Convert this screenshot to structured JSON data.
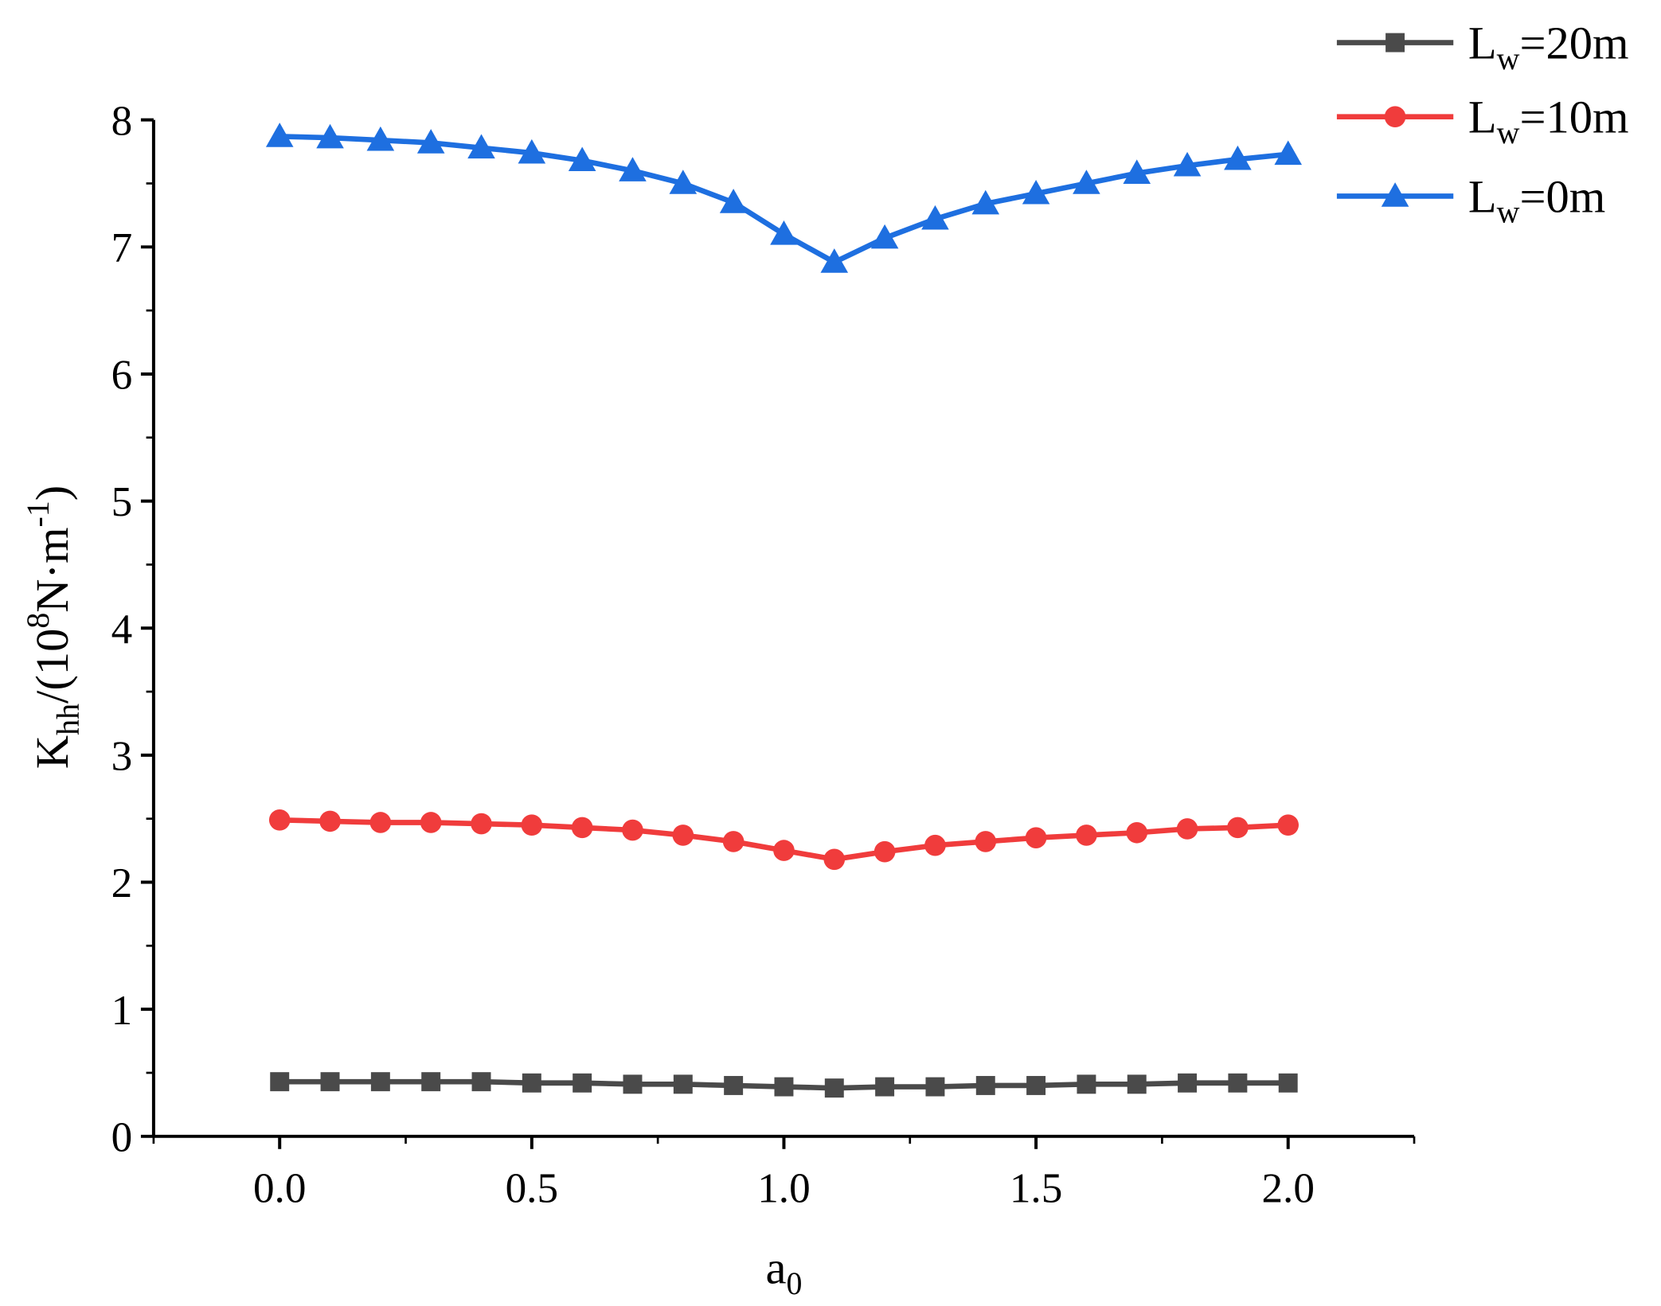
{
  "chart_data": {
    "type": "line",
    "title": "",
    "xlabel": {
      "main": "a",
      "sub": "0"
    },
    "ylabel": {
      "main": "K",
      "sub": "hh",
      "rest1": "/(10",
      "sup1": "8",
      "rest2": "N·m",
      "sup2": "-1",
      "rest3": ")"
    },
    "xlim": [
      -0.25,
      2.25
    ],
    "ylim": [
      0,
      8
    ],
    "xticks": [
      0.0,
      0.5,
      1.0,
      1.5,
      2.0
    ],
    "xtick_labels": [
      "0.0",
      "0.5",
      "1.0",
      "1.5",
      "2.0"
    ],
    "yticks": [
      0,
      1,
      2,
      3,
      4,
      5,
      6,
      7,
      8
    ],
    "ytick_labels": [
      "0",
      "1",
      "2",
      "3",
      "4",
      "5",
      "6",
      "7",
      "8"
    ],
    "grid": false,
    "legend_placement": "top-right",
    "x": [
      0.0,
      0.1,
      0.2,
      0.3,
      0.4,
      0.5,
      0.6,
      0.7,
      0.8,
      0.9,
      1.0,
      1.1,
      1.2,
      1.3,
      1.4,
      1.5,
      1.6,
      1.7,
      1.8,
      1.9,
      2.0
    ],
    "series": [
      {
        "name": "Lw=20m",
        "label_main": "L",
        "label_sub": "w",
        "label_rest": "=20m",
        "color": "#4a4a4a",
        "marker": "square",
        "values": [
          0.43,
          0.43,
          0.43,
          0.43,
          0.43,
          0.42,
          0.42,
          0.41,
          0.41,
          0.4,
          0.39,
          0.38,
          0.39,
          0.39,
          0.4,
          0.4,
          0.41,
          0.41,
          0.42,
          0.42,
          0.42
        ]
      },
      {
        "name": "Lw=10m",
        "label_main": "L",
        "label_sub": "w",
        "label_rest": "=10m",
        "color": "#f03c3c",
        "marker": "circle",
        "values": [
          2.49,
          2.48,
          2.47,
          2.47,
          2.46,
          2.45,
          2.43,
          2.41,
          2.37,
          2.32,
          2.25,
          2.18,
          2.24,
          2.29,
          2.32,
          2.35,
          2.37,
          2.39,
          2.42,
          2.43,
          2.45
        ]
      },
      {
        "name": "Lw=0m",
        "label_main": "L",
        "label_sub": "w",
        "label_rest": "=0m",
        "color": "#1e6fe0",
        "marker": "triangle",
        "values": [
          7.87,
          7.86,
          7.84,
          7.82,
          7.78,
          7.74,
          7.68,
          7.6,
          7.5,
          7.35,
          7.1,
          6.88,
          7.07,
          7.22,
          7.34,
          7.42,
          7.5,
          7.58,
          7.64,
          7.69,
          7.73
        ]
      }
    ]
  }
}
